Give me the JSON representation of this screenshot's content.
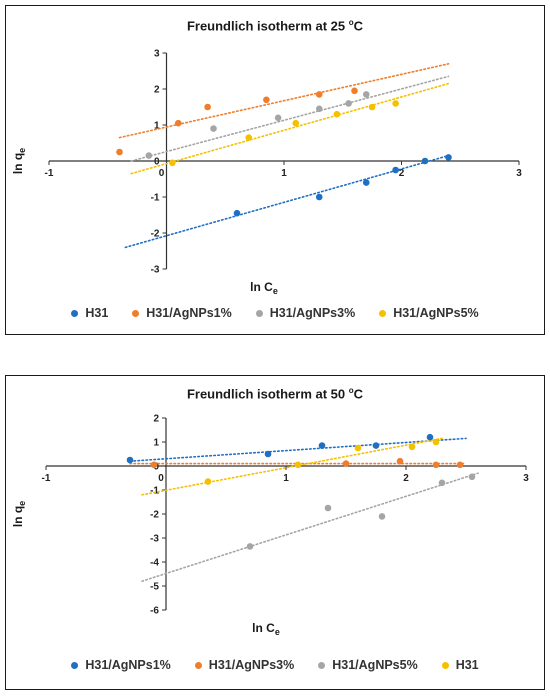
{
  "chart_data": [
    {
      "type": "scatter",
      "title": "Freundlich isotherm at 25 ",
      "title_unit": "C",
      "title_sup": "o",
      "xlabel": "ln C",
      "xlabel_sub": "e",
      "ylabel": "ln q",
      "ylabel_sub": "e",
      "xlim": [
        -1,
        3
      ],
      "ylim": [
        -3,
        3
      ],
      "xticks": [
        -1,
        0,
        1,
        2,
        3
      ],
      "yticks": [
        -3,
        -2,
        -1,
        0,
        1,
        2,
        3
      ],
      "trendlines": "dotted linear",
      "legend_position": "bottom",
      "series": [
        {
          "name": "H31",
          "color": "#1f6fc5",
          "points": [
            [
              0.6,
              -1.45
            ],
            [
              1.3,
              -1.0
            ],
            [
              1.7,
              -0.6
            ],
            [
              1.95,
              -0.25
            ],
            [
              2.2,
              0.0
            ],
            [
              2.4,
              0.1
            ]
          ],
          "trend": [
            [
              -0.35,
              -2.4
            ],
            [
              2.4,
              0.15
            ]
          ]
        },
        {
          "name": "H31/AgNPs1%",
          "color": "#f07d2b",
          "points": [
            [
              -0.4,
              0.25
            ],
            [
              0.1,
              1.05
            ],
            [
              0.35,
              1.5
            ],
            [
              0.85,
              1.7
            ],
            [
              1.3,
              1.85
            ],
            [
              1.6,
              1.95
            ]
          ],
          "trend": [
            [
              -0.4,
              0.65
            ],
            [
              2.4,
              2.7
            ]
          ]
        },
        {
          "name": "H31/AgNPs3%",
          "color": "#a5a5a5",
          "points": [
            [
              -0.15,
              0.15
            ],
            [
              0.4,
              0.9
            ],
            [
              0.95,
              1.2
            ],
            [
              1.3,
              1.45
            ],
            [
              1.55,
              1.6
            ],
            [
              1.7,
              1.85
            ]
          ],
          "trend": [
            [
              -0.3,
              0.0
            ],
            [
              2.4,
              2.35
            ]
          ]
        },
        {
          "name": "H31/AgNPs5%",
          "color": "#f5c000",
          "points": [
            [
              0.05,
              -0.05
            ],
            [
              0.7,
              0.65
            ],
            [
              1.1,
              1.05
            ],
            [
              1.45,
              1.3
            ],
            [
              1.75,
              1.5
            ],
            [
              1.95,
              1.6
            ]
          ],
          "trend": [
            [
              -0.3,
              -0.35
            ],
            [
              2.4,
              2.15
            ]
          ]
        }
      ]
    },
    {
      "type": "scatter",
      "title": "Freundlich isotherm at 50 ",
      "title_unit": "C",
      "title_sup": "o",
      "xlabel": "ln C",
      "xlabel_sub": "e",
      "ylabel": "ln q",
      "ylabel_sub": "e",
      "xlim": [
        -1,
        3
      ],
      "ylim": [
        -6,
        2
      ],
      "xticks": [
        -1,
        0,
        1,
        2,
        3
      ],
      "yticks": [
        -6,
        -5,
        -4,
        -3,
        -2,
        -1,
        0,
        1,
        2
      ],
      "trendlines": "dotted linear",
      "legend_position": "bottom",
      "series": [
        {
          "name": "H31/AgNPs1%",
          "color": "#1f6fc5",
          "points": [
            [
              -0.3,
              0.25
            ],
            [
              0.85,
              0.5
            ],
            [
              1.3,
              0.85
            ],
            [
              1.75,
              0.85
            ],
            [
              2.2,
              1.2
            ]
          ],
          "trend": [
            [
              -0.3,
              0.2
            ],
            [
              2.5,
              1.15
            ]
          ]
        },
        {
          "name": "H31/AgNPs3%",
          "color": "#f07d2b",
          "points": [
            [
              -0.1,
              0.05
            ],
            [
              1.5,
              0.1
            ],
            [
              1.95,
              0.2
            ],
            [
              2.25,
              0.05
            ],
            [
              2.45,
              0.05
            ]
          ],
          "trend": [
            [
              -0.3,
              0.1
            ],
            [
              2.5,
              0.1
            ]
          ]
        },
        {
          "name": "H31/AgNPs5%",
          "color": "#a5a5a5",
          "points": [
            [
              0.7,
              -3.35
            ],
            [
              1.35,
              -1.75
            ],
            [
              1.8,
              -2.1
            ],
            [
              2.3,
              -0.7
            ],
            [
              2.55,
              -0.45
            ]
          ],
          "trend": [
            [
              -0.2,
              -4.8
            ],
            [
              2.6,
              -0.3
            ]
          ]
        },
        {
          "name": "H31",
          "color": "#f5c000",
          "points": [
            [
              0.35,
              -0.65
            ],
            [
              1.1,
              0.05
            ],
            [
              1.6,
              0.75
            ],
            [
              2.05,
              0.8
            ],
            [
              2.25,
              1.0
            ]
          ],
          "trend": [
            [
              -0.2,
              -1.2
            ],
            [
              2.3,
              1.15
            ]
          ]
        }
      ]
    }
  ]
}
